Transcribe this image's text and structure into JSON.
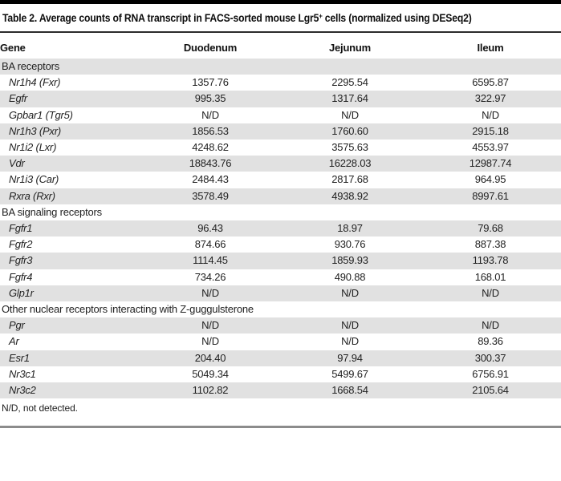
{
  "title": {
    "prefix": "Table 2. Average counts of RNA transcript in FACS-sorted mouse Lgr5",
    "sup": "+",
    "suffix": " cells (normalized using DESeq2)"
  },
  "table": {
    "columns": [
      "Gene",
      "Duodenum",
      "Jejunum",
      "Ileum"
    ],
    "rows": [
      {
        "type": "section",
        "label": "BA receptors"
      },
      {
        "type": "gene",
        "gene": "Nr1h4 (Fxr)",
        "values": [
          "1357.76",
          "2295.54",
          "6595.87"
        ]
      },
      {
        "type": "gene",
        "gene": "Egfr",
        "values": [
          "995.35",
          "1317.64",
          "322.97"
        ]
      },
      {
        "type": "gene",
        "gene": "Gpbar1 (Tgr5)",
        "values": [
          "N/D",
          "N/D",
          "N/D"
        ]
      },
      {
        "type": "gene",
        "gene": "Nr1h3 (Pxr)",
        "values": [
          "1856.53",
          "1760.60",
          "2915.18"
        ]
      },
      {
        "type": "gene",
        "gene": "Nr1i2 (Lxr)",
        "values": [
          "4248.62",
          "3575.63",
          "4553.97"
        ]
      },
      {
        "type": "gene",
        "gene": "Vdr",
        "values": [
          "18843.76",
          "16228.03",
          "12987.74"
        ]
      },
      {
        "type": "gene",
        "gene": "Nr1i3 (Car)",
        "values": [
          "2484.43",
          "2817.68",
          "964.95"
        ]
      },
      {
        "type": "gene",
        "gene": "Rxra (Rxr)",
        "values": [
          "3578.49",
          "4938.92",
          "8997.61"
        ]
      },
      {
        "type": "section",
        "label": "BA signaling receptors"
      },
      {
        "type": "gene",
        "gene": "Fgfr1",
        "values": [
          "96.43",
          "18.97",
          "79.68"
        ]
      },
      {
        "type": "gene",
        "gene": "Fgfr2",
        "values": [
          "874.66",
          "930.76",
          "887.38"
        ]
      },
      {
        "type": "gene",
        "gene": "Fgfr3",
        "values": [
          "1114.45",
          "1859.93",
          "1193.78"
        ]
      },
      {
        "type": "gene",
        "gene": "Fgfr4",
        "values": [
          "734.26",
          "490.88",
          "168.01"
        ]
      },
      {
        "type": "gene",
        "gene": "Glp1r",
        "values": [
          "N/D",
          "N/D",
          "N/D"
        ]
      },
      {
        "type": "section",
        "label": "Other nuclear receptors interacting with Z-guggulsterone"
      },
      {
        "type": "gene",
        "gene": "Pgr",
        "values": [
          "N/D",
          "N/D",
          "N/D"
        ]
      },
      {
        "type": "gene",
        "gene": "Ar",
        "values": [
          "N/D",
          "N/D",
          "89.36"
        ]
      },
      {
        "type": "gene",
        "gene": "Esr1",
        "values": [
          "204.40",
          "97.94",
          "300.37"
        ]
      },
      {
        "type": "gene",
        "gene": "Nr3c1",
        "values": [
          "5049.34",
          "5499.67",
          "6756.91"
        ]
      },
      {
        "type": "gene",
        "gene": "Nr3c2",
        "values": [
          "1102.82",
          "1668.54",
          "2105.64"
        ]
      }
    ]
  },
  "footnote": "N/D, not detected.",
  "colors": {
    "top_bar": "#000000",
    "stripe": "#e1e1e1",
    "text": "#222222",
    "bottom_rule": "#8c8c8c"
  }
}
